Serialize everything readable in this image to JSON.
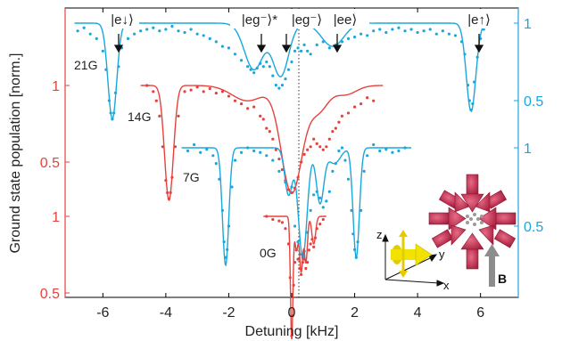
{
  "chart_data": {
    "type": "line",
    "xlabel": "Detuning [kHz]",
    "ylabel": "Ground state population [norm.]",
    "xlim": [
      -7.2,
      7.2
    ],
    "x_ticks": [
      "-6",
      "-4",
      "-2",
      "0",
      "2",
      "4",
      "6"
    ],
    "x_tick_values": [
      -6,
      -4,
      -2,
      0,
      2,
      4,
      6
    ],
    "y_ticks_left": [
      {
        "label": "1",
        "color": "#e8413c"
      },
      {
        "label": "0.5",
        "color": "#e8413c"
      },
      {
        "label": "1",
        "color": "#e8413c"
      },
      {
        "label": "0.5",
        "color": "#e8413c"
      }
    ],
    "y_ticks_right": [
      {
        "label": "1",
        "color": "#1aa7dc"
      },
      {
        "label": "0.5",
        "color": "#1aa7dc"
      },
      {
        "label": "1",
        "color": "#1aa7dc"
      },
      {
        "label": "0.5",
        "color": "#1aa7dc"
      }
    ],
    "annotations": [
      {
        "text": "|e↓⟩",
        "x": -5.7
      },
      {
        "text": "|eg⁻⟩*",
        "x": -1.2
      },
      {
        "text": "|eg⁻⟩",
        "x": -0.3
      },
      {
        "text": "|ee⟩",
        "x": 1.3
      },
      {
        "text": "|e↑⟩",
        "x": 5.7
      }
    ],
    "series": [
      {
        "name": "21G",
        "color": "#1aa7dc",
        "fit_xrange": [
          -6.9,
          6.2
        ],
        "dips": [
          [
            -5.7,
            0.62,
            0.14
          ],
          [
            -1.2,
            0.3,
            0.3
          ],
          [
            -0.35,
            0.34,
            0.25
          ],
          [
            1.3,
            0.15,
            0.35
          ],
          [
            5.7,
            0.57,
            0.15
          ]
        ],
        "data_x": [
          -6.8,
          -6.6,
          -6.4,
          -6.2,
          -6.0,
          -5.9,
          -5.8,
          -5.75,
          -5.7,
          -5.65,
          -5.6,
          -5.5,
          -5.4,
          -5.2,
          -5.0,
          -4.8,
          -4.6,
          -4.4,
          -4.2,
          -4.0,
          -3.8,
          -3.6,
          -3.4,
          -3.2,
          -3.0,
          -2.8,
          -2.6,
          -2.4,
          -2.2,
          -2.0,
          -1.8,
          -1.6,
          -1.4,
          -1.3,
          -1.2,
          -1.1,
          -1.0,
          -0.9,
          -0.8,
          -0.7,
          -0.6,
          -0.5,
          -0.4,
          -0.3,
          -0.2,
          -0.1,
          0.0,
          0.1,
          0.2,
          0.3,
          0.4,
          0.5,
          0.6,
          0.8,
          1.0,
          1.2,
          1.4,
          1.6,
          1.8,
          2.0,
          2.2,
          2.4,
          2.6,
          2.8,
          3.0,
          3.2,
          3.4,
          3.6,
          3.8,
          4.0,
          4.2,
          4.4,
          4.6,
          4.8,
          5.0,
          5.2,
          5.4,
          5.5,
          5.6,
          5.65,
          5.7,
          5.75,
          5.8,
          5.9,
          6.0,
          6.1
        ],
        "data_y": [
          0.95,
          0.97,
          0.93,
          0.9,
          0.82,
          0.7,
          0.5,
          0.42,
          0.38,
          0.42,
          0.55,
          0.72,
          0.84,
          0.9,
          0.93,
          0.95,
          0.96,
          0.97,
          0.95,
          0.96,
          0.98,
          0.95,
          0.94,
          0.96,
          0.93,
          0.92,
          0.9,
          0.88,
          0.85,
          0.84,
          0.8,
          0.76,
          0.72,
          0.7,
          0.68,
          0.71,
          0.74,
          0.72,
          0.75,
          0.72,
          0.66,
          0.6,
          0.58,
          0.6,
          0.64,
          0.7,
          0.75,
          0.82,
          0.84,
          0.82,
          0.86,
          0.82,
          0.8,
          0.86,
          0.88,
          0.84,
          0.86,
          0.88,
          0.9,
          0.91,
          0.93,
          0.92,
          0.95,
          0.96,
          0.94,
          0.96,
          0.97,
          0.95,
          0.96,
          0.94,
          0.95,
          0.96,
          0.93,
          0.95,
          0.93,
          0.92,
          0.88,
          0.8,
          0.6,
          0.5,
          0.44,
          0.48,
          0.62,
          0.78,
          0.9,
          0.96
        ]
      },
      {
        "name": "14G",
        "color": "#e8413c",
        "fit_xrange": [
          -4.8,
          2.9
        ],
        "dips": [
          [
            -3.9,
            0.75,
            0.14
          ],
          [
            0.0,
            0.7,
            0.33
          ],
          [
            0.85,
            0.16,
            0.3
          ],
          [
            -1.4,
            0.1,
            0.5
          ],
          [
            1.7,
            0.06,
            0.35
          ]
        ],
        "data_x": [
          -4.6,
          -4.4,
          -4.3,
          -4.2,
          -4.1,
          -4.0,
          -3.95,
          -3.9,
          -3.85,
          -3.8,
          -3.7,
          -3.6,
          -3.4,
          -3.2,
          -3.0,
          -2.8,
          -2.6,
          -2.4,
          -2.2,
          -2.0,
          -1.8,
          -1.6,
          -1.4,
          -1.2,
          -1.0,
          -0.9,
          -0.8,
          -0.7,
          -0.6,
          -0.5,
          -0.4,
          -0.3,
          -0.2,
          -0.1,
          0.0,
          0.1,
          0.2,
          0.3,
          0.4,
          0.5,
          0.6,
          0.7,
          0.8,
          0.9,
          1.0,
          1.1,
          1.2,
          1.3,
          1.4,
          1.5,
          1.6,
          1.8,
          2.0,
          2.2,
          2.4,
          2.6
        ],
        "data_y": [
          1.0,
          0.96,
          0.9,
          0.8,
          0.6,
          0.38,
          0.3,
          0.26,
          0.3,
          0.4,
          0.6,
          0.8,
          0.96,
          0.97,
          0.99,
          0.96,
          0.98,
          0.95,
          0.96,
          0.93,
          0.9,
          0.88,
          0.85,
          0.86,
          0.8,
          0.78,
          0.72,
          0.7,
          0.65,
          0.58,
          0.52,
          0.45,
          0.38,
          0.32,
          0.3,
          0.33,
          0.4,
          0.5,
          0.55,
          0.58,
          0.6,
          0.65,
          0.62,
          0.6,
          0.58,
          0.6,
          0.65,
          0.7,
          0.72,
          0.76,
          0.8,
          0.82,
          0.86,
          0.88,
          0.92,
          0.9
        ]
      },
      {
        "name": "7G",
        "color": "#1aa7dc",
        "fit_xrange": [
          -3.5,
          3.8
        ],
        "dips": [
          [
            -2.1,
            0.75,
            0.1
          ],
          [
            0.35,
            0.7,
            0.14
          ],
          [
            -0.1,
            0.3,
            0.12
          ],
          [
            0.9,
            0.35,
            0.12
          ],
          [
            2.05,
            0.7,
            0.1
          ],
          [
            1.35,
            0.1,
            0.2
          ]
        ],
        "data_x": [
          -3.3,
          -3.1,
          -2.9,
          -2.7,
          -2.5,
          -2.4,
          -2.3,
          -2.2,
          -2.15,
          -2.1,
          -2.05,
          -2.0,
          -1.9,
          -1.8,
          -1.6,
          -1.4,
          -1.2,
          -1.0,
          -0.8,
          -0.6,
          -0.4,
          -0.2,
          0.0,
          0.1,
          0.2,
          0.3,
          0.35,
          0.4,
          0.5,
          0.6,
          0.7,
          0.8,
          0.9,
          1.0,
          1.1,
          1.2,
          1.3,
          1.4,
          1.5,
          1.6,
          1.7,
          1.8,
          1.9,
          1.95,
          2.0,
          2.05,
          2.1,
          2.2,
          2.3,
          2.4,
          2.6,
          2.8,
          3.0,
          3.2,
          3.4,
          3.6
        ],
        "data_y": [
          0.98,
          1.02,
          0.97,
          0.99,
          0.95,
          0.9,
          0.8,
          0.6,
          0.4,
          0.3,
          0.35,
          0.5,
          0.75,
          0.92,
          0.97,
          1.0,
          0.98,
          0.97,
          0.95,
          0.92,
          0.85,
          0.78,
          0.75,
          0.5,
          0.4,
          0.32,
          0.3,
          0.34,
          0.46,
          0.6,
          0.7,
          0.72,
          0.68,
          0.62,
          0.66,
          0.72,
          0.85,
          0.9,
          0.98,
          1.0,
          0.92,
          0.8,
          0.6,
          0.45,
          0.35,
          0.3,
          0.4,
          0.6,
          0.85,
          0.95,
          1.02,
          0.98,
          0.99,
          0.97,
          0.98,
          1.0
        ]
      },
      {
        "name": "0G",
        "color": "#e8413c",
        "fit_xrange": [
          -0.9,
          1.1
        ],
        "dips": [
          [
            0.0,
            0.8,
            0.04
          ],
          [
            0.3,
            0.36,
            0.05
          ],
          [
            0.45,
            0.3,
            0.05
          ],
          [
            0.7,
            0.18,
            0.06
          ],
          [
            0.15,
            0.22,
            0.05
          ]
        ],
        "data_x": [
          -0.8,
          -0.6,
          -0.4,
          -0.3,
          -0.2,
          -0.1,
          -0.05,
          0.0,
          0.03,
          0.06,
          0.1,
          0.15,
          0.2,
          0.25,
          0.3,
          0.35,
          0.4,
          0.45,
          0.5,
          0.55,
          0.6,
          0.65,
          0.7,
          0.75,
          0.8,
          0.9,
          1.0
        ],
        "data_y": [
          1.0,
          0.98,
          0.97,
          0.96,
          0.92,
          0.82,
          0.6,
          0.22,
          0.35,
          0.55,
          0.7,
          0.78,
          0.72,
          0.66,
          0.62,
          0.7,
          0.72,
          0.66,
          0.7,
          0.78,
          0.82,
          0.85,
          0.8,
          0.86,
          0.92,
          0.95,
          0.98
        ]
      }
    ]
  },
  "inset": {
    "axes": [
      "z",
      "y",
      "x"
    ],
    "field_label": "B",
    "beam_color": "#cc2b4f",
    "probe_color": "#f2e200"
  }
}
